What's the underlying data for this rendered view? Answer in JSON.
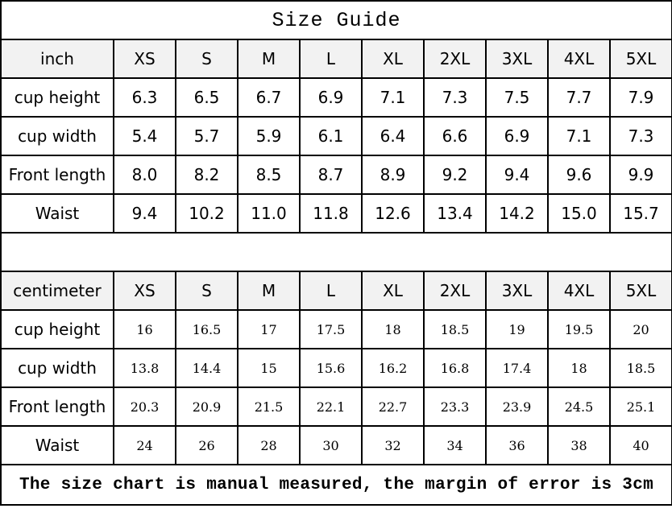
{
  "title": "Size Guide",
  "sizes": [
    "XS",
    "S",
    "M",
    "L",
    "XL",
    "2XL",
    "3XL",
    "4XL",
    "5XL"
  ],
  "inch": {
    "unit": "inch",
    "rows": [
      {
        "label": "cup height",
        "values": [
          "6.3",
          "6.5",
          "6.7",
          "6.9",
          "7.1",
          "7.3",
          "7.5",
          "7.7",
          "7.9"
        ]
      },
      {
        "label": "cup width",
        "values": [
          "5.4",
          "5.7",
          "5.9",
          "6.1",
          "6.4",
          "6.6",
          "6.9",
          "7.1",
          "7.3"
        ]
      },
      {
        "label": "Front length",
        "values": [
          "8.0",
          "8.2",
          "8.5",
          "8.7",
          "8.9",
          "9.2",
          "9.4",
          "9.6",
          "9.9"
        ]
      },
      {
        "label": "Waist",
        "values": [
          "9.4",
          "10.2",
          "11.0",
          "11.8",
          "12.6",
          "13.4",
          "14.2",
          "15.0",
          "15.7"
        ]
      }
    ]
  },
  "cm": {
    "unit": "centimeter",
    "rows": [
      {
        "label": "cup height",
        "values": [
          "16",
          "16.5",
          "17",
          "17.5",
          "18",
          "18.5",
          "19",
          "19.5",
          "20"
        ]
      },
      {
        "label": "cup width",
        "values": [
          "13.8",
          "14.4",
          "15",
          "15.6",
          "16.2",
          "16.8",
          "17.4",
          "18",
          "18.5"
        ]
      },
      {
        "label": "Front length",
        "values": [
          "20.3",
          "20.9",
          "21.5",
          "22.1",
          "22.7",
          "23.3",
          "23.9",
          "24.5",
          "25.1"
        ]
      },
      {
        "label": "Waist",
        "values": [
          "24",
          "26",
          "28",
          "30",
          "32",
          "34",
          "36",
          "38",
          "40"
        ]
      }
    ]
  },
  "footer": "The size chart is manual measured, the margin of error is 3cm"
}
